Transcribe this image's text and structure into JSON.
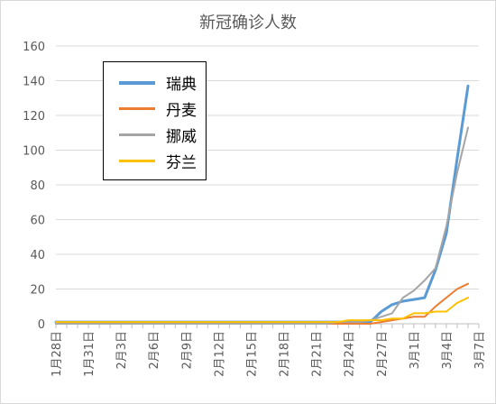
{
  "chart_data": {
    "type": "line",
    "title": "新冠确诊人数",
    "xlabel": "",
    "ylabel": "",
    "ylim": [
      0,
      160
    ],
    "yticks": [
      "0",
      "20",
      "40",
      "60",
      "80",
      "100",
      "120",
      "140",
      "160"
    ],
    "grid": true,
    "legend_position": "top-left",
    "categories": [
      "1月28日",
      "1月29日",
      "1月30日",
      "1月31日",
      "2月1日",
      "2月2日",
      "2月3日",
      "2月4日",
      "2月5日",
      "2月6日",
      "2月7日",
      "2月8日",
      "2月9日",
      "2月10日",
      "2月11日",
      "2月12日",
      "2月13日",
      "2月14日",
      "2月15日",
      "2月16日",
      "2月17日",
      "2月18日",
      "2月19日",
      "2月20日",
      "2月21日",
      "2月22日",
      "2月23日",
      "2月24日",
      "2月25日",
      "2月26日",
      "2月27日",
      "2月28日",
      "2月29日",
      "3月1日",
      "3月2日",
      "3月3日",
      "3月4日",
      "3月5日",
      "3月6日",
      "3月7日"
    ],
    "tick_labels": [
      "1月28日",
      "",
      "",
      "1月31日",
      "",
      "",
      "2月3日",
      "",
      "",
      "2月6日",
      "",
      "",
      "2月9日",
      "",
      "",
      "2月12日",
      "",
      "",
      "2月15日",
      "",
      "",
      "2月18日",
      "",
      "",
      "2月21日",
      "",
      "",
      "2月24日",
      "",
      "",
      "2月27日",
      "",
      "",
      "3月1日",
      "",
      "",
      "3月4日",
      "",
      "",
      "3月7日"
    ],
    "series": [
      {
        "name": "瑞典",
        "color": "#5B9BD5",
        "width": 3,
        "values": [
          1,
          1,
          1,
          1,
          1,
          1,
          1,
          1,
          1,
          1,
          1,
          1,
          1,
          1,
          1,
          1,
          1,
          1,
          1,
          1,
          1,
          1,
          1,
          1,
          1,
          1,
          1,
          1,
          1,
          1,
          7,
          11,
          13,
          14,
          15,
          31,
          52,
          95,
          137,
          null
        ]
      },
      {
        "name": "丹麦",
        "color": "#ED7D31",
        "width": 2,
        "values": [
          0,
          0,
          0,
          0,
          0,
          0,
          0,
          0,
          0,
          0,
          0,
          0,
          0,
          0,
          0,
          0,
          0,
          0,
          0,
          0,
          0,
          0,
          0,
          0,
          0,
          0,
          0,
          0,
          0,
          0,
          1,
          2,
          3,
          4,
          4,
          10,
          15,
          20,
          23,
          null
        ]
      },
      {
        "name": "挪威",
        "color": "#A5A5A5",
        "width": 2,
        "values": [
          0,
          0,
          0,
          0,
          0,
          0,
          0,
          0,
          0,
          0,
          0,
          0,
          0,
          0,
          0,
          0,
          0,
          0,
          0,
          0,
          0,
          0,
          0,
          0,
          0,
          0,
          1,
          1,
          1,
          2,
          4,
          6,
          15,
          19,
          25,
          32,
          56,
          87,
          113,
          null
        ]
      },
      {
        "name": "芬兰",
        "color": "#FFC000",
        "width": 2,
        "values": [
          1,
          1,
          1,
          1,
          1,
          1,
          1,
          1,
          1,
          1,
          1,
          1,
          1,
          1,
          1,
          1,
          1,
          1,
          1,
          1,
          1,
          1,
          1,
          1,
          1,
          1,
          1,
          2,
          2,
          2,
          2,
          3,
          3,
          6,
          6,
          7,
          7,
          12,
          15,
          null
        ]
      }
    ]
  }
}
